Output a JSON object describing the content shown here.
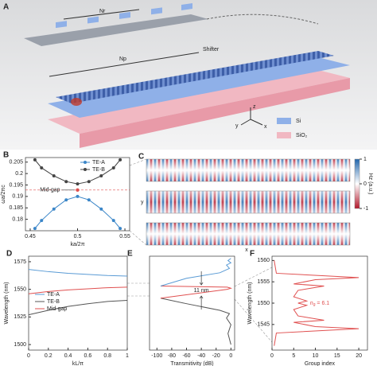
{
  "panel_a": {
    "letter": "A",
    "nr": "Nr",
    "np": "Np",
    "shifter": "Shifter",
    "si": "Si",
    "sio2": "SiO₂",
    "axis_z": "z",
    "axis_y": "y",
    "axis_x": "x"
  },
  "field_map": {
    "letter": "C",
    "colorbar_label": "Hz (a.u.)",
    "clim": [
      -1,
      1
    ],
    "ticks": [
      1,
      0,
      -1
    ],
    "y_label": "y",
    "x_label": "x"
  },
  "chart_data": [
    {
      "type": "line",
      "letter": "B",
      "xlabel": "ka/2π",
      "ylabel": "ωa/2πc",
      "markers": true,
      "legend": "top-right",
      "xlim": [
        0.445,
        0.555
      ],
      "ylim": [
        0.175,
        0.207
      ],
      "xticks": [
        0.45,
        0.5,
        0.55
      ],
      "yticks": [
        0.18,
        0.185,
        0.19,
        0.195,
        0.2,
        0.205
      ],
      "series": [
        {
          "name": "TE-A",
          "color": "#3b86c8",
          "x": [
            0.455,
            0.462,
            0.475,
            0.488,
            0.5,
            0.512,
            0.525,
            0.538,
            0.545
          ],
          "values": [
            0.176,
            0.1795,
            0.1845,
            0.1885,
            0.19,
            0.1885,
            0.1845,
            0.1795,
            0.176
          ]
        },
        {
          "name": "TE-B",
          "color": "#444444",
          "x": [
            0.455,
            0.462,
            0.475,
            0.488,
            0.5,
            0.512,
            0.525,
            0.538,
            0.545
          ],
          "values": [
            0.206,
            0.2025,
            0.199,
            0.1965,
            0.1955,
            0.1965,
            0.199,
            0.2025,
            0.206
          ]
        }
      ],
      "annotation": {
        "text": "Mid-gap",
        "x": 0.5,
        "y": 0.1928
      }
    },
    {
      "type": "line",
      "letter": "D",
      "xlabel": "kL/π",
      "ylabel": "Wavelength (nm)",
      "legend": "center-left",
      "xlim": [
        0,
        1
      ],
      "ylim": [
        1495,
        1580
      ],
      "xticks": [
        0,
        0.2,
        0.4,
        0.6,
        0.8,
        1
      ],
      "yticks": [
        1500,
        1525,
        1550,
        1575
      ],
      "series": [
        {
          "name": "TE-A",
          "color": "#5a9bd5",
          "x": [
            0,
            0.2,
            0.4,
            0.6,
            0.8,
            1
          ],
          "values": [
            1568,
            1566,
            1564.5,
            1563.5,
            1562.5,
            1562
          ]
        },
        {
          "name": "TE-B",
          "color": "#555555",
          "x": [
            0,
            0.2,
            0.4,
            0.6,
            0.8,
            1
          ],
          "values": [
            1527,
            1531,
            1534.5,
            1537,
            1539,
            1540
          ]
        },
        {
          "name": "Mid-gap",
          "color": "#e05050",
          "x": [
            0,
            0.2,
            0.4,
            0.6,
            0.8,
            1
          ],
          "values": [
            1546,
            1548,
            1549.5,
            1550.5,
            1551.5,
            1552
          ]
        }
      ]
    },
    {
      "type": "line",
      "letter": "E",
      "xlabel": "Transmitivity (dB)",
      "xlim": [
        -110,
        5
      ],
      "ylim": [
        1495,
        1580
      ],
      "xticks": [
        -100,
        -80,
        -60,
        -40,
        -20,
        0
      ],
      "series": [
        {
          "color": "#555555",
          "x": [
            0,
            -4,
            0,
            -6,
            -2,
            -15,
            -60,
            -95
          ],
          "values": [
            1500,
            1510,
            1518,
            1524,
            1528,
            1531,
            1537,
            1542
          ]
        },
        {
          "color": "#e05050",
          "x": [
            -95,
            -5,
            0,
            -5,
            -95
          ],
          "values": [
            1542,
            1550,
            1551,
            1552,
            1553
          ]
        },
        {
          "color": "#5a9bd5",
          "x": [
            -95,
            -60,
            -15,
            -2,
            -6,
            0,
            -4,
            0
          ],
          "values": [
            1553,
            1560,
            1565,
            1569,
            1572,
            1574,
            1576,
            1578
          ]
        }
      ],
      "notes": [
        {
          "text": "11 nm",
          "x": -40,
          "y": 1549
        }
      ]
    },
    {
      "type": "line",
      "letter": "F",
      "xlabel": "Group index",
      "ylabel": "Wavelength (nm)",
      "xlim": [
        0,
        22
      ],
      "ylim": [
        1539,
        1561
      ],
      "xticks": [
        0,
        5,
        10,
        15,
        20
      ],
      "yticks": [
        1545,
        1550,
        1555,
        1560
      ],
      "series": [
        {
          "color": "#e05050",
          "x": [
            0.5,
            1,
            20,
            10,
            5,
            12,
            6,
            5,
            8,
            6,
            8,
            5,
            6,
            12,
            5,
            10,
            20,
            1,
            0.5
          ],
          "values": [
            1540,
            1543,
            1544,
            1544.5,
            1545.5,
            1546,
            1547,
            1548.5,
            1549.5,
            1550,
            1550.5,
            1551.5,
            1553,
            1554,
            1554.5,
            1555.5,
            1556,
            1557,
            1560
          ]
        }
      ],
      "notes": [
        {
          "symbol": "n",
          "sub": "g",
          "text": " = 6.1",
          "x": 11,
          "y": 1550
        }
      ]
    }
  ]
}
